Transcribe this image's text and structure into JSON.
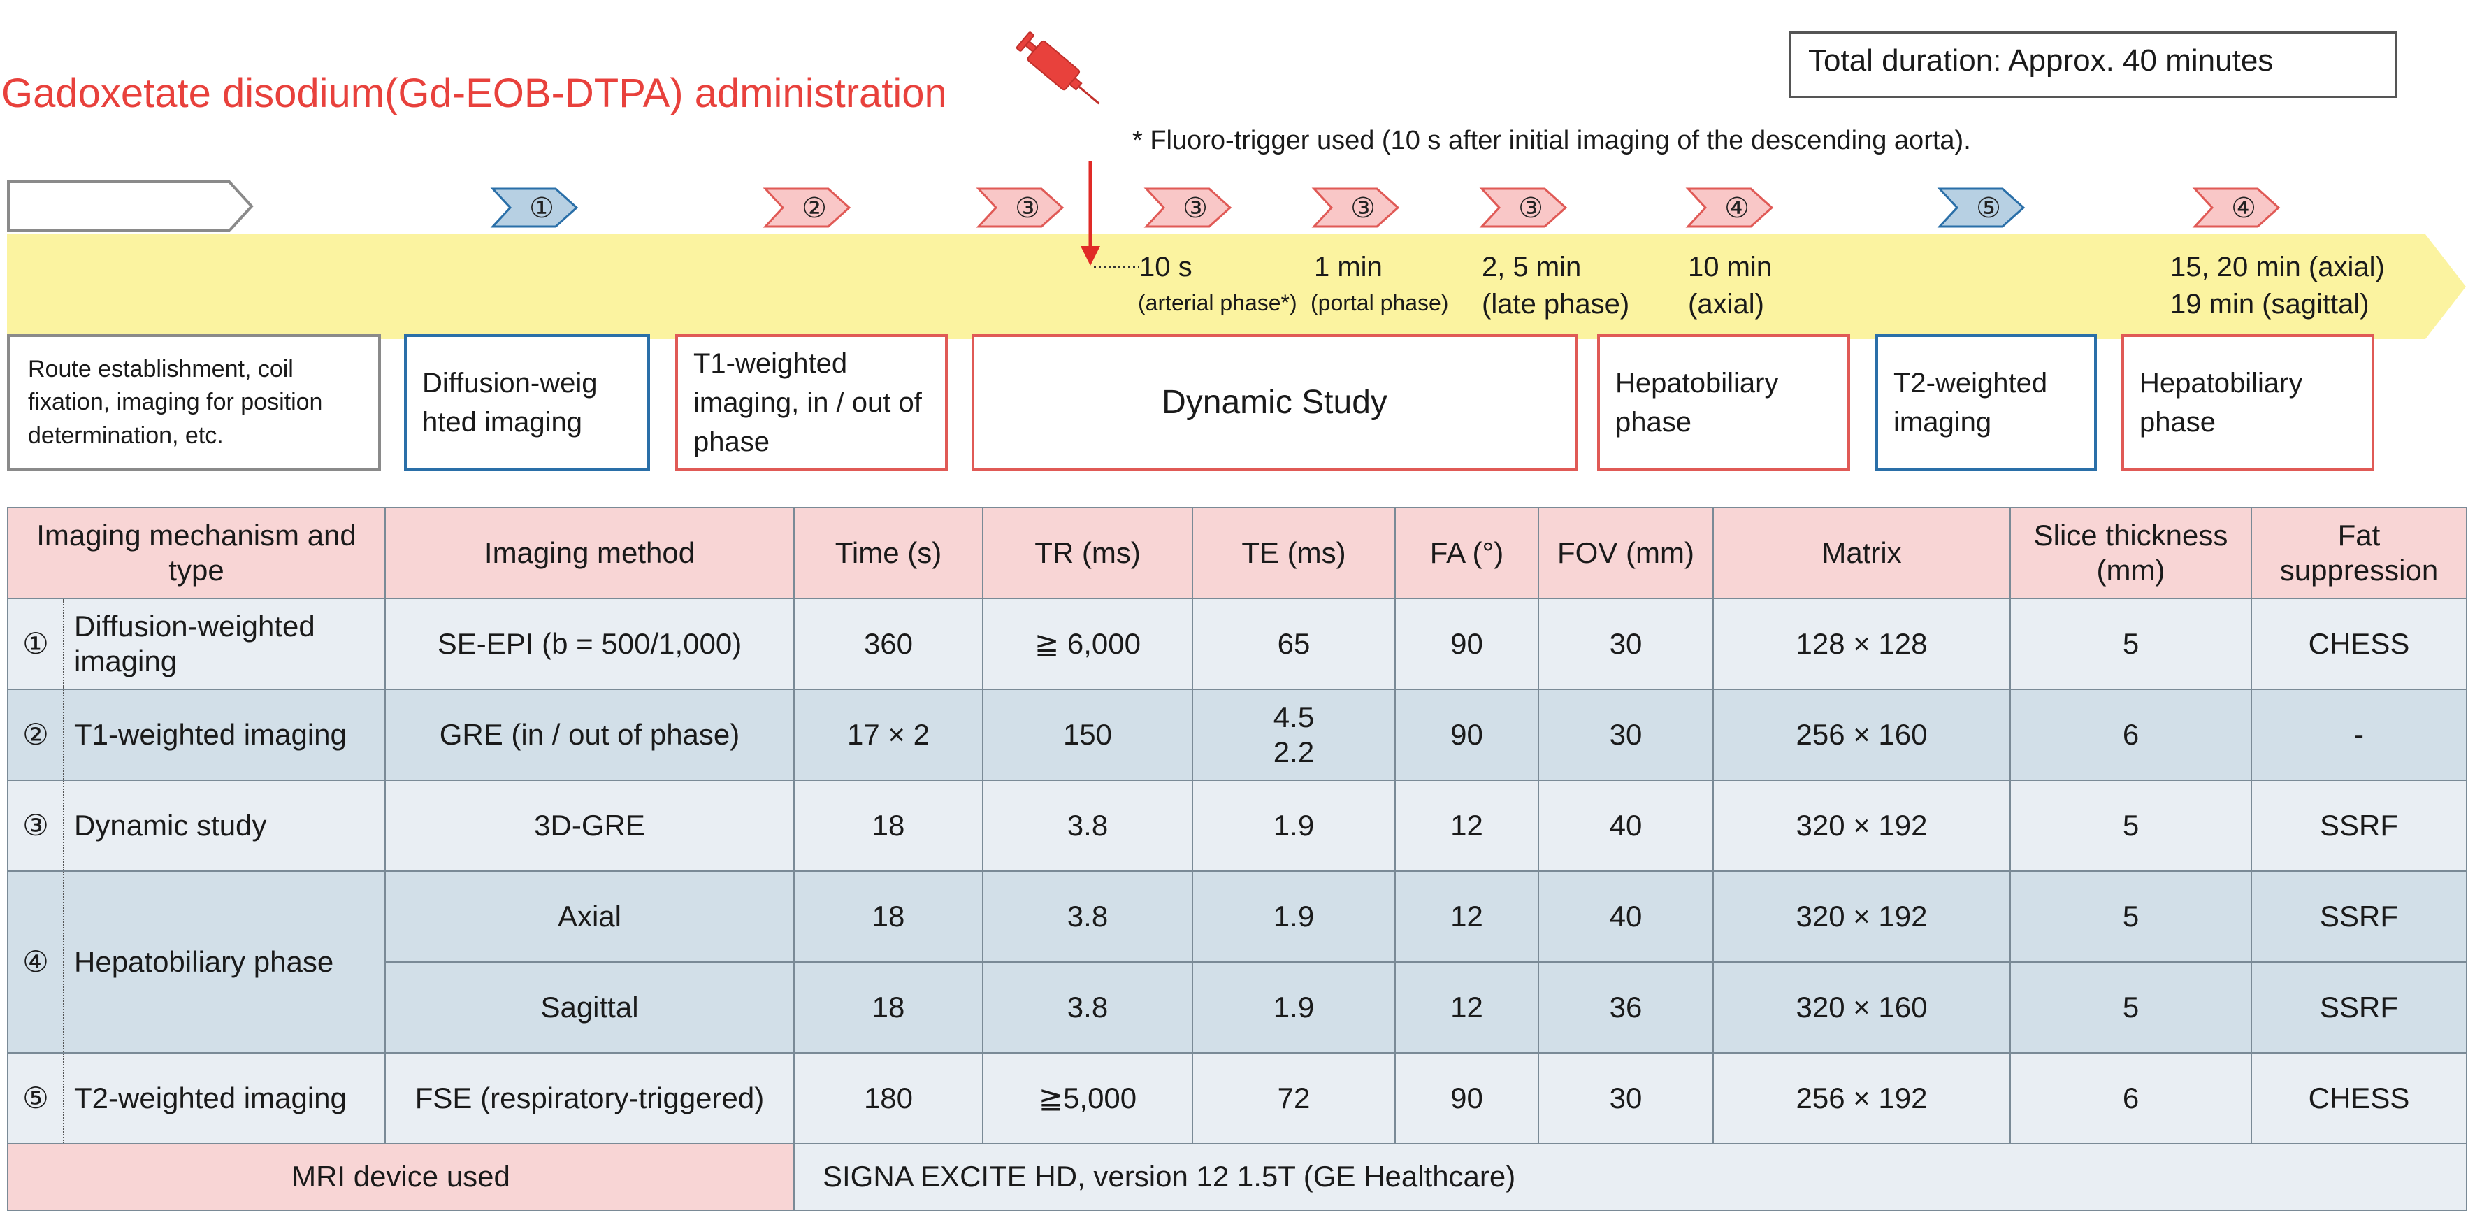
{
  "title": "Gadoxetate disodium(Gd-EOB-DTPA) administration",
  "total_duration": "Total duration: Approx. 40  minutes",
  "fluoro_note": "* Fluoro-trigger used (10 s after initial imaging of the descending aorta).",
  "colors": {
    "red_text": "#e8413c",
    "yellow_band": "#fbf3a0",
    "blue": "#2a6fa8",
    "red_box": "#e05a56",
    "header_pink": "#f8d5d5"
  },
  "markers": [
    "①",
    "②",
    "③",
    "③",
    "③",
    "③",
    "④",
    "⑤",
    "④"
  ],
  "timeline_labels": {
    "t10s": "10 s",
    "t10s_sub": "(arterial phase*)",
    "t1min": "1 min",
    "t1min_sub": "(portal phase)",
    "t25min": "2, 5 min",
    "t25min_sub": "(late phase)",
    "t10min": "10 min",
    "t10min_sub": "(axial)",
    "t1520": "15, 20 min (axial)",
    "t19": "19 min (sagittal)"
  },
  "steps": {
    "route": "Route establishment, coil fixation, imaging for position determination, etc.",
    "dwi": "Diffusion-weig hted imaging",
    "t1": "T1-weighted imaging, in / out of phase",
    "dynamic": "Dynamic Study",
    "hb1": "Hepatobiliary phase",
    "t2": "T2-weighted imaging",
    "hb2": "Hepatobiliary phase"
  },
  "table": {
    "headers": [
      "Imaging mechanism and type",
      "Imaging method",
      "Time (s)",
      "TR (ms)",
      "TE (ms)",
      "FA (°)",
      "FOV (mm)",
      "Matrix",
      "Slice thickness (mm)",
      "Fat suppression"
    ],
    "rows": [
      {
        "num": "①",
        "mech": "Diffusion-weighted imaging",
        "method": "SE-EPI (b = 500/1,000)",
        "time": "360",
        "tr": "≧ 6,000",
        "te": "65",
        "fa": "90",
        "fov": "30",
        "matrix": "128 × 128",
        "slice": "5",
        "fat": "CHESS"
      },
      {
        "num": "②",
        "mech": "T1-weighted imaging",
        "method": "GRE (in / out of phase)",
        "time": "17 × 2",
        "tr": "150",
        "te": "4.5",
        "te2": "2.2",
        "fa": "90",
        "fov": "30",
        "matrix": "256 × 160",
        "slice": "6",
        "fat": "-"
      },
      {
        "num": "③",
        "mech": "Dynamic study",
        "method": "3D-GRE",
        "time": "18",
        "tr": "3.8",
        "te": "1.9",
        "fa": "12",
        "fov": "40",
        "matrix": "320 × 192",
        "slice": "5",
        "fat": "SSRF"
      },
      {
        "num": "④",
        "mech": "Hepatobiliary phase",
        "method": "Axial",
        "time": "18",
        "tr": "3.8",
        "te": "1.9",
        "fa": "12",
        "fov": "40",
        "matrix": "320 × 192",
        "slice": "5",
        "fat": "SSRF"
      },
      {
        "method": "Sagittal",
        "time": "18",
        "tr": "3.8",
        "te": "1.9",
        "fa": "12",
        "fov": "36",
        "matrix": "320 × 160",
        "slice": "5",
        "fat": "SSRF"
      },
      {
        "num": "⑤",
        "mech": "T2-weighted imaging",
        "method": "FSE (respiratory-triggered)",
        "time": "180",
        "tr": "≧5,000",
        "te": "72",
        "fa": "90",
        "fov": "30",
        "matrix": "256 × 192",
        "slice": "6",
        "fat": "CHESS"
      }
    ],
    "device_label": "MRI device used",
    "device_value": "SIGNA EXCITE HD, version 12 1.5T (GE Healthcare)"
  }
}
